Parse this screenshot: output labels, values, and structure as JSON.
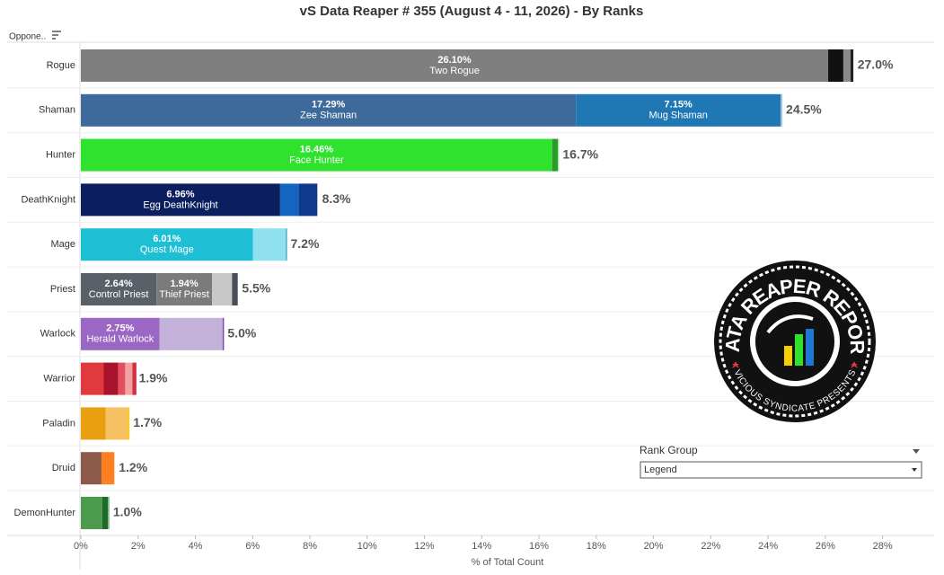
{
  "chart_data": {
    "type": "stacked-bar",
    "title": "vS Data Reaper # 355 (August 4 - 11, 2026) - By Ranks",
    "row_header": "Oppone..",
    "x_label": "% of Total Count",
    "categories": [
      "Rogue",
      "Shaman",
      "Hunter",
      "DeathKnight",
      "Mage",
      "Priest",
      "Warlock",
      "Warrior",
      "Paladin",
      "Druid",
      "DemonHunter"
    ],
    "segments": [
      [
        {
          "value": 26.1,
          "value_label": "26.10%",
          "name": "Two Rogue",
          "color": "#7f7f7f"
        },
        {
          "value": 0.53,
          "color": "#111111"
        },
        {
          "value": 0.25,
          "color": "#8a8a8a"
        },
        {
          "value": 0.1,
          "color": "#222222"
        }
      ],
      [
        {
          "value": 17.29,
          "value_label": "17.29%",
          "name": "Zee Shaman",
          "color": "#3e6a9b"
        },
        {
          "value": 7.15,
          "value_label": "7.15%",
          "name": "Mug Shaman",
          "color": "#1f77b4"
        },
        {
          "value": 0.06,
          "color": "#9cc3e0"
        }
      ],
      [
        {
          "value": 16.46,
          "value_label": "16.46%",
          "name": "Face Hunter",
          "color": "#2ee22e"
        },
        {
          "value": 0.2,
          "color": "#2a9a2a"
        },
        {
          "value": 0.04,
          "color": "#9be39b"
        }
      ],
      [
        {
          "value": 6.96,
          "value_label": "6.96%",
          "name": "Egg DeathKnight",
          "color": "#0b1f5e"
        },
        {
          "value": 0.65,
          "color": "#1565c0"
        },
        {
          "value": 0.65,
          "color": "#0d3a8a"
        }
      ],
      [
        {
          "value": 6.01,
          "value_label": "6.01%",
          "name": "Quest Mage",
          "color": "#1dbfd5"
        },
        {
          "value": 1.15,
          "color": "#90e1ef"
        },
        {
          "value": 0.04,
          "color": "#3aa0b0"
        }
      ],
      [
        {
          "value": 2.64,
          "value_label": "2.64%",
          "name": "Control Priest",
          "color": "#5a6068"
        },
        {
          "value": 1.94,
          "value_label": "1.94%",
          "name": "Thief Priest",
          "color": "#7b7b7b"
        },
        {
          "value": 0.7,
          "color": "#c8c8c8"
        },
        {
          "value": 0.2,
          "color": "#4a4e58"
        }
      ],
      [
        {
          "value": 2.75,
          "value_label": "2.75%",
          "name": "Herald Warlock",
          "color": "#9b67c4"
        },
        {
          "value": 2.2,
          "color": "#c4b1d9"
        },
        {
          "value": 0.05,
          "color": "#7a4aa8"
        }
      ],
      [
        {
          "value": 0.8,
          "color": "#e0393e"
        },
        {
          "value": 0.5,
          "color": "#a8122a"
        },
        {
          "value": 0.25,
          "color": "#e25060"
        },
        {
          "value": 0.25,
          "color": "#f2a2a2"
        },
        {
          "value": 0.14,
          "color": "#d03040"
        }
      ],
      [
        {
          "value": 0.87,
          "color": "#e8a010"
        },
        {
          "value": 0.78,
          "color": "#f6c063"
        },
        {
          "value": 0.05,
          "color": "#f0d000"
        }
      ],
      [
        {
          "value": 0.72,
          "color": "#8b5a4a"
        },
        {
          "value": 0.45,
          "color": "#ff8020"
        }
      ],
      [
        {
          "value": 0.75,
          "color": "#4c9a4c"
        },
        {
          "value": 0.2,
          "color": "#1e6a2e"
        },
        {
          "value": 0.05,
          "color": "#7fc07f"
        }
      ]
    ],
    "totals": [
      27.0,
      24.5,
      16.7,
      8.3,
      7.2,
      5.5,
      5.0,
      1.9,
      1.7,
      1.2,
      1.0
    ],
    "total_labels": [
      "27.0%",
      "24.5%",
      "16.7%",
      "8.3%",
      "7.2%",
      "5.5%",
      "5.0%",
      "1.9%",
      "1.7%",
      "1.2%",
      "1.0%"
    ],
    "xlim": [
      0,
      29.8
    ],
    "xticks": [
      {
        "value": 0,
        "label": "0%"
      },
      {
        "value": 2,
        "label": "2%"
      },
      {
        "value": 4,
        "label": "4%"
      },
      {
        "value": 6,
        "label": "6%"
      },
      {
        "value": 8,
        "label": "8%"
      },
      {
        "value": 10,
        "label": "10%"
      },
      {
        "value": 12,
        "label": "12%"
      },
      {
        "value": 14,
        "label": "14%"
      },
      {
        "value": 16,
        "label": "16%"
      },
      {
        "value": 18,
        "label": "18%"
      },
      {
        "value": 20,
        "label": "20%"
      },
      {
        "value": 22,
        "label": "22%"
      },
      {
        "value": 24,
        "label": "24%"
      },
      {
        "value": 26,
        "label": "26%"
      },
      {
        "value": 28,
        "label": "28%"
      }
    ]
  },
  "filter": {
    "title": "Rank Group",
    "value": "Legend"
  },
  "logo": {
    "title": "DATA REAPER REPORT",
    "subtitle": "VICIOUS SYNDICATE PRESENTS"
  }
}
